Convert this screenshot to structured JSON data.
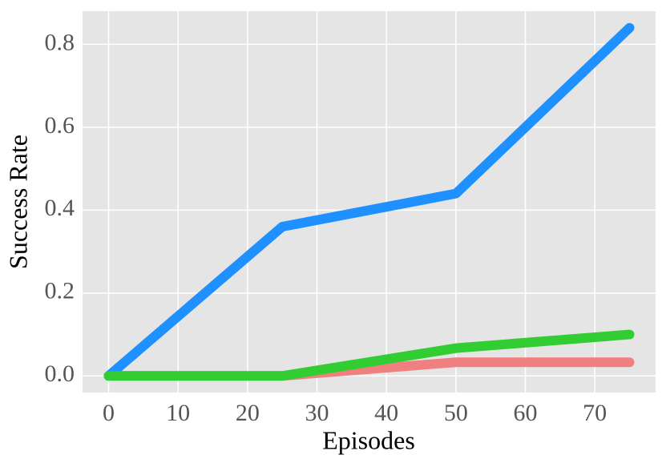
{
  "chart_data": {
    "type": "line",
    "x_label": "Episodes",
    "y_label": "Success Rate",
    "x": [
      0,
      25,
      50,
      75
    ],
    "series": [
      {
        "color": "#f08080",
        "values": [
          0,
          0,
          0.033,
          0.033
        ]
      },
      {
        "color": "#1e90ff",
        "values": [
          0,
          0.36,
          0.44,
          0.84
        ]
      },
      {
        "color": "#32cd32",
        "values": [
          0,
          0,
          0.067,
          0.1
        ]
      }
    ],
    "xlim": [
      -3.75,
      78.75
    ],
    "xticks": [
      0,
      10,
      20,
      30,
      40,
      50,
      60,
      70
    ],
    "ylim": [
      -0.04,
      0.88
    ],
    "yticks": [
      {
        "value": 0,
        "label": "0.0"
      },
      {
        "value": 0.2,
        "label": "0.2"
      },
      {
        "value": 0.4,
        "label": "0.4"
      },
      {
        "value": 0.6,
        "label": "0.6"
      },
      {
        "value": 0.8,
        "label": "0.8"
      }
    ],
    "grid": true
  }
}
